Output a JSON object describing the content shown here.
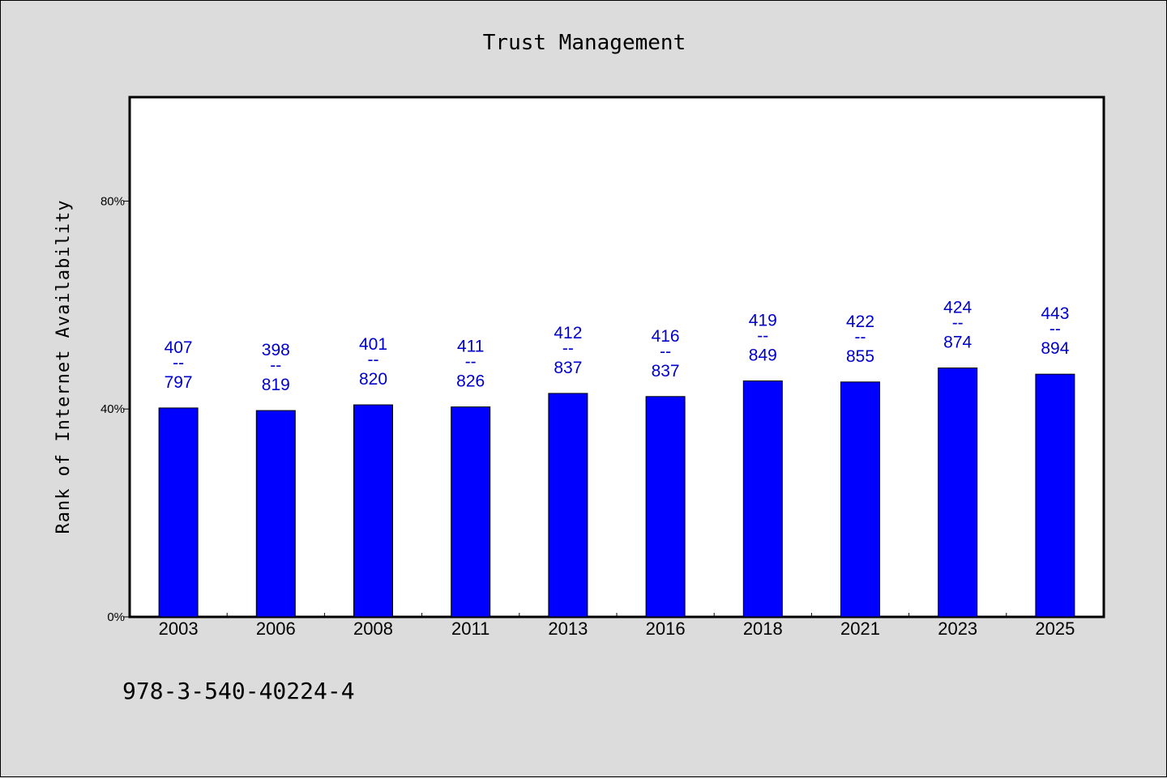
{
  "chart_data": {
    "type": "bar",
    "title": "Trust Management",
    "xlabel": "",
    "ylabel": "Rank of Internet Availability",
    "categories": [
      "2003",
      "2006",
      "2008",
      "2011",
      "2013",
      "2016",
      "2018",
      "2021",
      "2023",
      "2025"
    ],
    "values": [
      40.2,
      39.7,
      40.8,
      40.4,
      43.0,
      42.4,
      45.4,
      45.2,
      47.9,
      46.7
    ],
    "data_labels": [
      {
        "top": "407",
        "sep": "--",
        "bottom": "797"
      },
      {
        "top": "398",
        "sep": "--",
        "bottom": "819"
      },
      {
        "top": "401",
        "sep": "--",
        "bottom": "820"
      },
      {
        "top": "411",
        "sep": "--",
        "bottom": "826"
      },
      {
        "top": "412",
        "sep": "--",
        "bottom": "837"
      },
      {
        "top": "416",
        "sep": "--",
        "bottom": "837"
      },
      {
        "top": "419",
        "sep": "--",
        "bottom": "849"
      },
      {
        "top": "422",
        "sep": "--",
        "bottom": "855"
      },
      {
        "top": "424",
        "sep": "--",
        "bottom": "874"
      },
      {
        "top": "443",
        "sep": "--",
        "bottom": "894"
      }
    ],
    "yticks": [
      0,
      40,
      80
    ],
    "ytick_labels": [
      "0%",
      "40%",
      "80%"
    ],
    "ylim": [
      0,
      100
    ],
    "grid": false,
    "bar_color": "#0000ff",
    "label_color": "#0000cc"
  },
  "footer": {
    "text": "978-3-540-40224-4"
  }
}
